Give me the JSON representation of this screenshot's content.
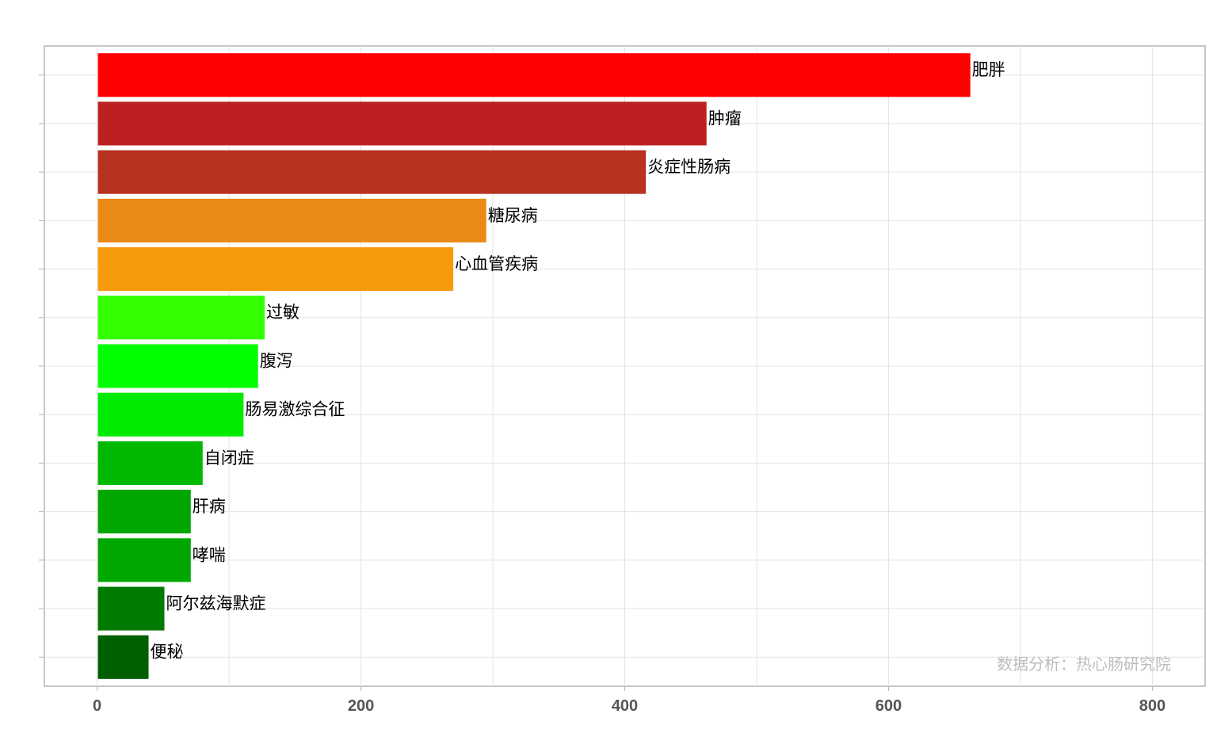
{
  "chart_data": {
    "type": "bar",
    "orientation": "horizontal",
    "categories": [
      "肥胖",
      "肿瘤",
      "炎症性肠病",
      "糖尿病",
      "心血管疾病",
      "过敏",
      "腹泻",
      "肠易激综合征",
      "自闭症",
      "肝病",
      "哮喘",
      "阿尔兹海默症",
      "便秘"
    ],
    "values": [
      662,
      462,
      416,
      295,
      270,
      127,
      122,
      111,
      80,
      71,
      71,
      51,
      39
    ],
    "colors": [
      "#ff0000",
      "#bc2020",
      "#b83222",
      "#eb8917",
      "#f79a0b",
      "#33ff00",
      "#00ff00",
      "#00ea00",
      "#00b800",
      "#00a700",
      "#00a700",
      "#007a00",
      "#006000"
    ],
    "xlim": [
      -40,
      840
    ],
    "x_ticks": [
      0,
      200,
      400,
      600,
      800
    ],
    "grid": true,
    "legend": "none",
    "title": "",
    "xlabel": "",
    "ylabel": "",
    "watermark": "数据分析：热心肠研究院"
  }
}
